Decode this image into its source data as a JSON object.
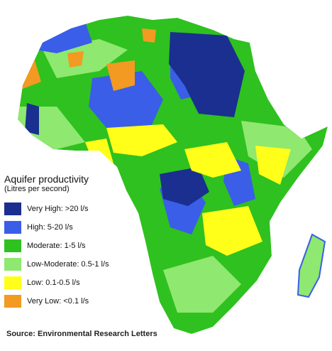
{
  "legend": {
    "title": "Aquifer productivity",
    "subtitle": "(Litres per second)",
    "items": [
      {
        "label": "Very High: >20 l/s",
        "color": "#1a2f8f"
      },
      {
        "label": "High: 5-20 l/s",
        "color": "#3a5ee8"
      },
      {
        "label": "Moderate: 1-5 l/s",
        "color": "#2fc11f"
      },
      {
        "label": "Low-Moderate: 0.5-1 l/s",
        "color": "#8fe86f"
      },
      {
        "label": "Low: 0.1-0.5 l/s",
        "color": "#ffff1a"
      },
      {
        "label": "Very Low: <0.1 l/s",
        "color": "#f29a22"
      }
    ]
  },
  "source": "Source: Environmental Research Letters"
}
